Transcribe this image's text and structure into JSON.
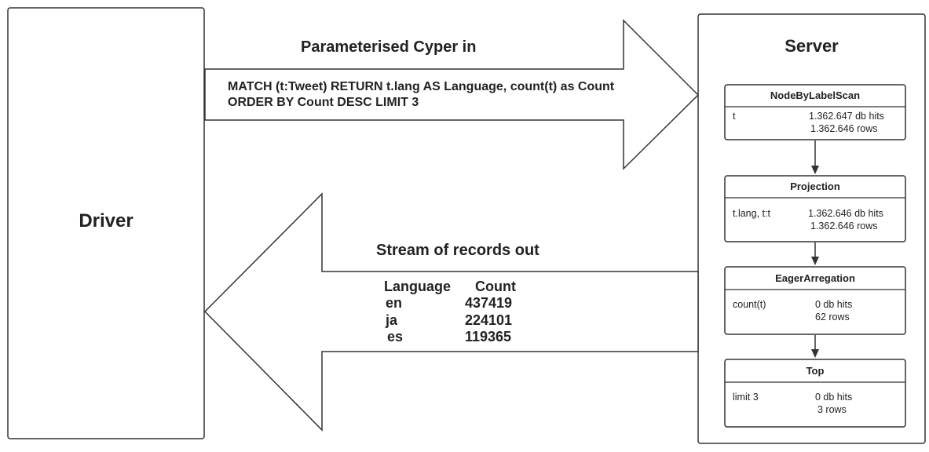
{
  "driver": {
    "label": "Driver"
  },
  "server": {
    "label": "Server"
  },
  "request": {
    "title": "Parameterised Cyper in",
    "query_line1": "MATCH (t:Tweet) RETURN t.lang AS Language, count(t) as Count",
    "query_line2": "ORDER BY Count DESC LIMIT 3"
  },
  "response": {
    "title": "Stream of records out",
    "columns": [
      "Language",
      "Count"
    ],
    "rows": [
      {
        "language": "en",
        "count": "437419"
      },
      {
        "language": "ja",
        "count": "224101"
      },
      {
        "language": "es",
        "count": "119365"
      }
    ]
  },
  "plan": [
    {
      "name": "NodeByLabelScan",
      "key": "t",
      "stat1": "1.362.647 db hits",
      "stat2": "1.362.646 rows"
    },
    {
      "name": "Projection",
      "key": "t.lang, t:t",
      "stat1": "1.362.646 db hits",
      "stat2": "1.362.646 rows"
    },
    {
      "name": "EagerArregation",
      "key": "count(t)",
      "stat1": "0 db hits",
      "stat2": "62 rows"
    },
    {
      "name": "Top",
      "key": "limit 3",
      "stat1": "0 db hits",
      "stat2": "3 rows"
    }
  ]
}
